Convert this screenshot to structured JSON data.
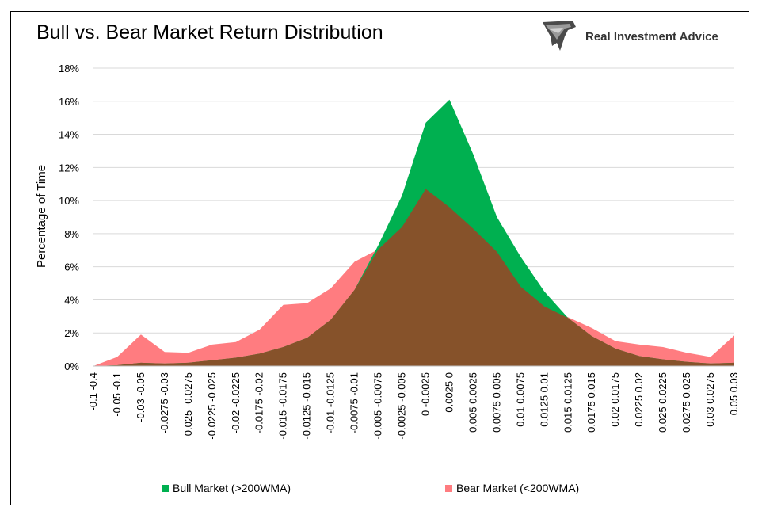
{
  "title": "Bull vs. Bear Market Return Distribution",
  "brand": {
    "name": "Real Investment Advice",
    "icon": "eagle-logo-icon"
  },
  "colors": {
    "bull": "#00b050",
    "bear": "#ff7c80",
    "overlap": "#86522a",
    "grid": "#d9d9d9"
  },
  "chart_data": {
    "type": "area",
    "title": "Bull vs. Bear Market Return Distribution",
    "ylabel": "Percentage of Time",
    "xlabel": "",
    "ylim": [
      0,
      18
    ],
    "ytick_values": [
      0,
      2,
      4,
      6,
      8,
      10,
      12,
      14,
      16,
      18
    ],
    "ytick_labels": [
      "0%",
      "2%",
      "4%",
      "6%",
      "8%",
      "10%",
      "12%",
      "14%",
      "16%",
      "18%"
    ],
    "grid": true,
    "legend_position": "bottom",
    "categories": [
      "-0.1 -0.4",
      "-0.05 -0.1",
      "-0.03 -0.05",
      "-0.0275 -0.03",
      "-0.025 -0.0275",
      "-0.0225 -0.025",
      "-0.02 -0.0225",
      "-0.0175 -0.02",
      "-0.015 -0.0175",
      "-0.0125 -0.015",
      "-0.01 -0.0125",
      "-0.0075 -0.01",
      "-0.005 -0.0075",
      "-0.0025 -0.005",
      "0 -0.0025",
      "0.0025 0",
      "0.005 0.0025",
      "0.0075 0.005",
      "0.01 0.0075",
      "0.0125 0.01",
      "0.015 0.0125",
      "0.0175 0.015",
      "0.02 0.0175",
      "0.0225 0.02",
      "0.025 0.0225",
      "0.0275 0.025",
      "0.03 0.0275",
      "0.05 0.03"
    ],
    "series": [
      {
        "name": "Bull Market (>200WMA)",
        "values": [
          0.0,
          0.05,
          0.2,
          0.15,
          0.2,
          0.35,
          0.5,
          0.75,
          1.15,
          1.7,
          2.8,
          4.6,
          7.3,
          10.3,
          14.7,
          16.1,
          12.8,
          9.0,
          6.6,
          4.5,
          2.9,
          1.8,
          1.05,
          0.6,
          0.4,
          0.25,
          0.15,
          0.2
        ]
      },
      {
        "name": "Bear Market (<200WMA)",
        "values": [
          0.0,
          0.55,
          1.9,
          0.85,
          0.8,
          1.3,
          1.45,
          2.2,
          3.7,
          3.8,
          4.7,
          6.3,
          7.05,
          8.4,
          10.7,
          9.6,
          8.3,
          6.9,
          4.8,
          3.6,
          2.95,
          2.3,
          1.5,
          1.3,
          1.15,
          0.8,
          0.55,
          1.85
        ]
      }
    ]
  }
}
